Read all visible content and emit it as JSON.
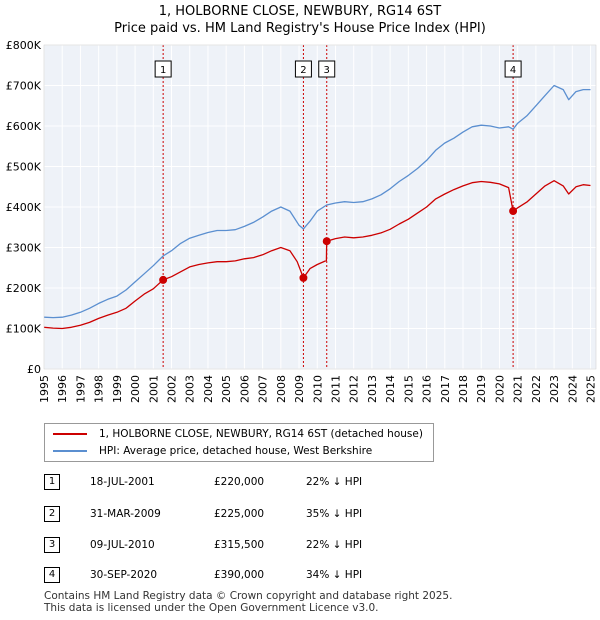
{
  "title_line1": "1, HOLBORNE CLOSE, NEWBURY, RG14 6ST",
  "title_line2": "Price paid vs. HM Land Registry's House Price Index (HPI)",
  "chart_data": {
    "type": "line",
    "title": "1, HOLBORNE CLOSE, NEWBURY, RG14 6ST — Price paid vs. HM Land Registry's House Price Index (HPI)",
    "xlabel": "",
    "ylabel": "",
    "xlim": [
      1995.0,
      2025.3
    ],
    "ylim": [
      0,
      800000
    ],
    "grid": true,
    "y_ticks": [
      {
        "value": 0,
        "label": "£0"
      },
      {
        "value": 100000,
        "label": "£100K"
      },
      {
        "value": 200000,
        "label": "£200K"
      },
      {
        "value": 300000,
        "label": "£300K"
      },
      {
        "value": 400000,
        "label": "£400K"
      },
      {
        "value": 500000,
        "label": "£500K"
      },
      {
        "value": 600000,
        "label": "£600K"
      },
      {
        "value": 700000,
        "label": "£700K"
      },
      {
        "value": 800000,
        "label": "£800K"
      }
    ],
    "x_ticks": [
      "1995",
      "1996",
      "1997",
      "1998",
      "1999",
      "2000",
      "2001",
      "2002",
      "2003",
      "2004",
      "2005",
      "2006",
      "2007",
      "2008",
      "2009",
      "2010",
      "2011",
      "2012",
      "2013",
      "2014",
      "2015",
      "2016",
      "2017",
      "2018",
      "2019",
      "2020",
      "2021",
      "2022",
      "2023",
      "2024",
      "2025"
    ],
    "series": [
      {
        "name": "1, HOLBORNE CLOSE, NEWBURY, RG14 6ST (detached house)",
        "color": "#cc0000",
        "points": [
          [
            1995.0,
            103000
          ],
          [
            1995.5,
            101000
          ],
          [
            1996.0,
            100000
          ],
          [
            1996.5,
            103000
          ],
          [
            1997.0,
            108000
          ],
          [
            1997.5,
            115000
          ],
          [
            1998.0,
            125000
          ],
          [
            1998.5,
            133000
          ],
          [
            1999.0,
            140000
          ],
          [
            1999.5,
            150000
          ],
          [
            2000.0,
            168000
          ],
          [
            2000.5,
            185000
          ],
          [
            2001.0,
            198000
          ],
          [
            2001.54,
            220000
          ],
          [
            2002.0,
            228000
          ],
          [
            2002.5,
            240000
          ],
          [
            2003.0,
            252000
          ],
          [
            2003.5,
            258000
          ],
          [
            2004.0,
            262000
          ],
          [
            2004.5,
            265000
          ],
          [
            2005.0,
            265000
          ],
          [
            2005.5,
            267000
          ],
          [
            2006.0,
            272000
          ],
          [
            2006.5,
            275000
          ],
          [
            2007.0,
            282000
          ],
          [
            2007.5,
            292000
          ],
          [
            2008.0,
            300000
          ],
          [
            2008.5,
            292000
          ],
          [
            2008.9,
            265000
          ],
          [
            2009.24,
            225000
          ],
          [
            2009.6,
            248000
          ],
          [
            2010.0,
            258000
          ],
          [
            2010.5,
            268000
          ],
          [
            2010.52,
            315500
          ],
          [
            2011.0,
            322000
          ],
          [
            2011.5,
            326000
          ],
          [
            2012.0,
            324000
          ],
          [
            2012.5,
            326000
          ],
          [
            2013.0,
            330000
          ],
          [
            2013.5,
            336000
          ],
          [
            2014.0,
            345000
          ],
          [
            2014.5,
            358000
          ],
          [
            2015.0,
            370000
          ],
          [
            2015.5,
            385000
          ],
          [
            2016.0,
            400000
          ],
          [
            2016.5,
            420000
          ],
          [
            2017.0,
            432000
          ],
          [
            2017.5,
            443000
          ],
          [
            2018.0,
            452000
          ],
          [
            2018.5,
            460000
          ],
          [
            2019.0,
            463000
          ],
          [
            2019.5,
            461000
          ],
          [
            2020.0,
            457000
          ],
          [
            2020.5,
            448000
          ],
          [
            2020.75,
            390000
          ],
          [
            2021.0,
            398000
          ],
          [
            2021.5,
            412000
          ],
          [
            2022.0,
            432000
          ],
          [
            2022.5,
            452000
          ],
          [
            2023.0,
            465000
          ],
          [
            2023.5,
            452000
          ],
          [
            2023.8,
            432000
          ],
          [
            2024.2,
            450000
          ],
          [
            2024.6,
            455000
          ],
          [
            2025.0,
            453000
          ]
        ]
      },
      {
        "name": "HPI: Average price, detached house, West Berkshire",
        "color": "#5b8fd0",
        "points": [
          [
            1995.0,
            128000
          ],
          [
            1995.5,
            127000
          ],
          [
            1996.0,
            128000
          ],
          [
            1996.5,
            133000
          ],
          [
            1997.0,
            140000
          ],
          [
            1997.5,
            150000
          ],
          [
            1998.0,
            162000
          ],
          [
            1998.5,
            172000
          ],
          [
            1999.0,
            180000
          ],
          [
            1999.5,
            195000
          ],
          [
            2000.0,
            215000
          ],
          [
            2000.5,
            235000
          ],
          [
            2001.0,
            255000
          ],
          [
            2001.54,
            279000
          ],
          [
            2002.0,
            292000
          ],
          [
            2002.5,
            310000
          ],
          [
            2003.0,
            323000
          ],
          [
            2003.5,
            330000
          ],
          [
            2004.0,
            337000
          ],
          [
            2004.5,
            342000
          ],
          [
            2005.0,
            342000
          ],
          [
            2005.5,
            344000
          ],
          [
            2006.0,
            352000
          ],
          [
            2006.5,
            362000
          ],
          [
            2007.0,
            375000
          ],
          [
            2007.5,
            390000
          ],
          [
            2008.0,
            400000
          ],
          [
            2008.5,
            390000
          ],
          [
            2009.0,
            355000
          ],
          [
            2009.24,
            346000
          ],
          [
            2009.6,
            365000
          ],
          [
            2010.0,
            390000
          ],
          [
            2010.52,
            405000
          ],
          [
            2011.0,
            410000
          ],
          [
            2011.5,
            413000
          ],
          [
            2012.0,
            411000
          ],
          [
            2012.5,
            413000
          ],
          [
            2013.0,
            420000
          ],
          [
            2013.5,
            430000
          ],
          [
            2014.0,
            445000
          ],
          [
            2014.5,
            463000
          ],
          [
            2015.0,
            478000
          ],
          [
            2015.5,
            495000
          ],
          [
            2016.0,
            515000
          ],
          [
            2016.5,
            540000
          ],
          [
            2017.0,
            558000
          ],
          [
            2017.5,
            570000
          ],
          [
            2018.0,
            585000
          ],
          [
            2018.5,
            598000
          ],
          [
            2019.0,
            602000
          ],
          [
            2019.5,
            600000
          ],
          [
            2020.0,
            595000
          ],
          [
            2020.5,
            598000
          ],
          [
            2020.75,
            592000
          ],
          [
            2021.0,
            607000
          ],
          [
            2021.5,
            625000
          ],
          [
            2022.0,
            650000
          ],
          [
            2022.5,
            675000
          ],
          [
            2023.0,
            700000
          ],
          [
            2023.5,
            690000
          ],
          [
            2023.8,
            665000
          ],
          [
            2024.2,
            685000
          ],
          [
            2024.6,
            690000
          ],
          [
            2025.0,
            690000
          ]
        ]
      }
    ],
    "markers": [
      {
        "label": "1",
        "x": 2001.54,
        "y": 220000
      },
      {
        "label": "2",
        "x": 2009.24,
        "y": 225000
      },
      {
        "label": "3",
        "x": 2010.52,
        "y": 315500
      },
      {
        "label": "4",
        "x": 2020.75,
        "y": 390000
      }
    ]
  },
  "legend": [
    {
      "label": "1, HOLBORNE CLOSE, NEWBURY, RG14 6ST (detached house)",
      "color": "#cc0000"
    },
    {
      "label": "HPI: Average price, detached house, West Berkshire",
      "color": "#5b8fd0"
    }
  ],
  "sales": [
    {
      "num": "1",
      "date": "18-JUL-2001",
      "price": "£220,000",
      "hpi": "22% ↓ HPI"
    },
    {
      "num": "2",
      "date": "31-MAR-2009",
      "price": "£225,000",
      "hpi": "35% ↓ HPI"
    },
    {
      "num": "3",
      "date": "09-JUL-2010",
      "price": "£315,500",
      "hpi": "22% ↓ HPI"
    },
    {
      "num": "4",
      "date": "30-SEP-2020",
      "price": "£390,000",
      "hpi": "34% ↓ HPI"
    }
  ],
  "footer_line1": "Contains HM Land Registry data © Crown copyright and database right 2025.",
  "footer_line2": "This data is licensed under the Open Government Licence v3.0."
}
